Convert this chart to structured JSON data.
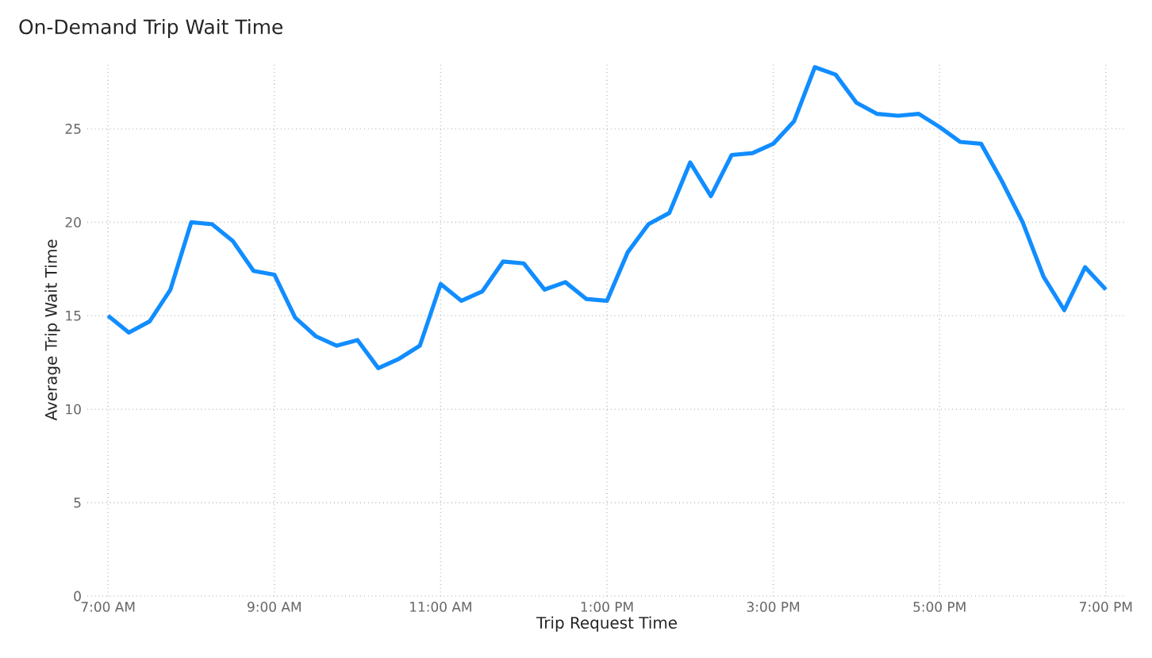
{
  "chart_data": {
    "type": "line",
    "title": "On-Demand Trip Wait Time",
    "xlabel": "Trip Request Time",
    "ylabel": "Average Trip Wait Time",
    "x": [
      7,
      7.25,
      7.5,
      7.75,
      8,
      8.25,
      8.5,
      8.75,
      9,
      9.25,
      9.5,
      9.75,
      10,
      10.25,
      10.5,
      10.75,
      11,
      11.25,
      11.5,
      11.75,
      12,
      12.25,
      12.5,
      12.75,
      13,
      13.25,
      13.5,
      13.75,
      14,
      14.25,
      14.5,
      14.75,
      15,
      15.25,
      15.5,
      15.75,
      16,
      16.25,
      16.5,
      16.75,
      17,
      17.25,
      17.5,
      17.75,
      18,
      18.25,
      18.5,
      18.75,
      19
    ],
    "series": [
      {
        "color": "#118dff",
        "values": [
          15.0,
          14.1,
          14.7,
          16.4,
          20.0,
          19.9,
          19.0,
          17.4,
          17.2,
          14.9,
          13.9,
          13.4,
          13.7,
          12.2,
          12.7,
          13.4,
          16.7,
          15.8,
          16.3,
          17.9,
          17.8,
          16.4,
          16.8,
          15.9,
          15.8,
          18.4,
          19.9,
          20.5,
          23.2,
          21.4,
          23.6,
          23.7,
          24.2,
          25.4,
          28.3,
          27.9,
          26.4,
          25.8,
          25.7,
          25.8,
          25.1,
          24.3,
          24.2,
          22.2,
          20.0,
          17.1,
          15.3,
          17.6,
          16.4
        ]
      }
    ],
    "xlim": [
      6.75,
      19.25
    ],
    "ylim": [
      0,
      28.5
    ],
    "xticks": [
      {
        "value": 7,
        "label": "7:00 AM"
      },
      {
        "value": 9,
        "label": "9:00 AM"
      },
      {
        "value": 11,
        "label": "11:00 AM"
      },
      {
        "value": 13,
        "label": "1:00 PM"
      },
      {
        "value": 15,
        "label": "3:00 PM"
      },
      {
        "value": 17,
        "label": "5:00 PM"
      },
      {
        "value": 19,
        "label": "7:00 PM"
      }
    ],
    "yticks": [
      0,
      5,
      10,
      15,
      20,
      25
    ],
    "grid": true,
    "marker": "none",
    "line_style": "solid"
  }
}
